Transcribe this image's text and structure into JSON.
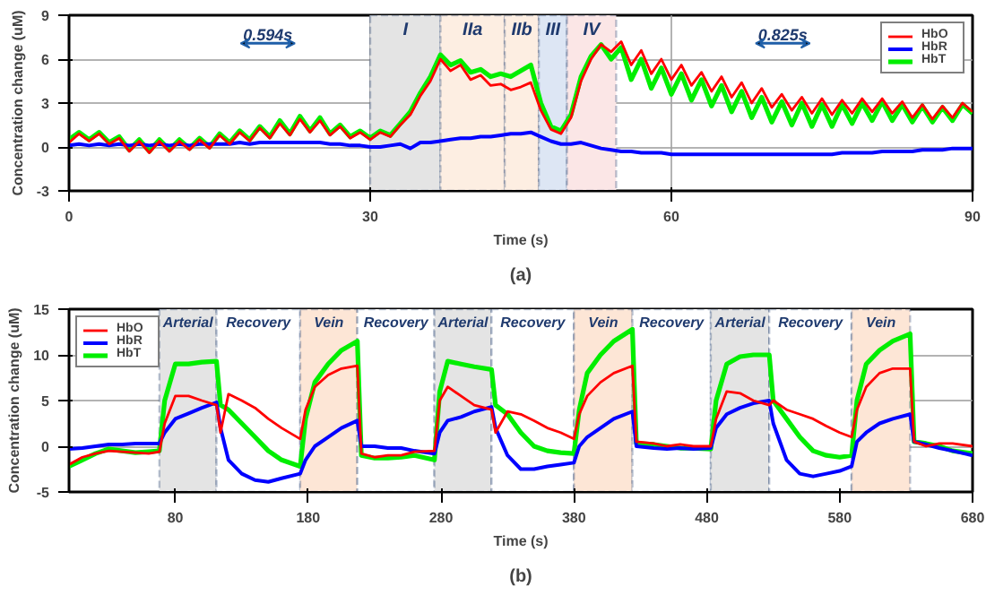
{
  "chart_data": [
    {
      "type": "line",
      "xlabel": "Time (s)",
      "ylabel": "Concentration change (uM)",
      "xlim": [
        0,
        90
      ],
      "ylim": [
        -3,
        9
      ],
      "xticks": [
        0,
        30,
        60,
        90
      ],
      "yticks": [
        -3,
        0,
        3,
        6,
        9
      ],
      "grid": true,
      "legend": "top right",
      "annotations": [
        "0.594s",
        "0.825s",
        "(a)"
      ],
      "bands": [
        {
          "axis": "x",
          "from": 30,
          "to": 37,
          "label": "I",
          "color": "#e4e4e4"
        },
        {
          "axis": "x",
          "from": 37,
          "to": 43.4,
          "label": "IIa",
          "color": "#fdeee2"
        },
        {
          "axis": "x",
          "from": 43.4,
          "to": 46.8,
          "label": "IIb",
          "color": "#fdeee2"
        },
        {
          "axis": "x",
          "from": 46.8,
          "to": 49.6,
          "label": "III",
          "color": "#dde6f4"
        },
        {
          "axis": "x",
          "from": 49.6,
          "to": 54.5,
          "label": "IV",
          "color": "#fbe6e6"
        }
      ],
      "x": [
        0,
        1,
        2,
        3,
        4,
        5,
        6,
        7,
        8,
        9,
        10,
        11,
        12,
        13,
        14,
        15,
        16,
        17,
        18,
        19,
        20,
        21,
        22,
        23,
        24,
        25,
        26,
        27,
        28,
        29,
        30,
        31,
        32,
        33,
        34,
        35,
        36,
        37,
        38,
        39,
        40,
        41,
        42,
        43,
        44,
        45,
        46,
        47,
        48,
        49,
        50,
        51,
        52,
        53,
        54,
        55,
        56,
        57,
        58,
        59,
        60,
        61,
        62,
        63,
        64,
        65,
        66,
        67,
        68,
        69,
        70,
        71,
        72,
        73,
        74,
        75,
        76,
        77,
        78,
        79,
        80,
        81,
        82,
        83,
        84,
        85,
        86,
        87,
        88,
        89,
        90
      ],
      "series": [
        {
          "name": "HbO",
          "color": "#ff0000",
          "values": [
            0.3,
            0.9,
            0.4,
            0.9,
            0.2,
            0.6,
            -0.3,
            0.4,
            -0.4,
            0.4,
            -0.3,
            0.4,
            -0.2,
            0.5,
            -0.1,
            0.8,
            0.2,
            1.0,
            0.4,
            1.3,
            0.6,
            1.6,
            0.8,
            1.9,
            1.0,
            1.8,
            0.8,
            1.4,
            0.6,
            1.0,
            0.5,
            1.0,
            0.7,
            1.5,
            2.2,
            3.5,
            4.5,
            6.0,
            5.2,
            5.6,
            4.6,
            4.9,
            4.2,
            4.3,
            3.9,
            4.1,
            4.4,
            2.5,
            1.2,
            0.9,
            2.0,
            4.5,
            6.0,
            7.0,
            6.5,
            7.2,
            5.6,
            6.6,
            5.0,
            6.0,
            4.6,
            5.6,
            4.2,
            5.1,
            3.8,
            4.8,
            3.4,
            4.4,
            3.0,
            4.0,
            2.7,
            3.6,
            2.5,
            3.4,
            2.3,
            3.3,
            2.2,
            3.2,
            2.3,
            3.3,
            2.4,
            3.3,
            2.3,
            3.1,
            2.0,
            2.9,
            1.9,
            2.8,
            2.0,
            3.0,
            2.4
          ]
        },
        {
          "name": "HbR",
          "color": "#0000ff",
          "values": [
            0.1,
            0.2,
            0.1,
            0.2,
            0.1,
            0.2,
            0.1,
            0.2,
            0.1,
            0.2,
            0.1,
            0.2,
            0.1,
            0.2,
            0.2,
            0.2,
            0.2,
            0.3,
            0.2,
            0.3,
            0.3,
            0.3,
            0.3,
            0.3,
            0.3,
            0.3,
            0.2,
            0.2,
            0.1,
            0.1,
            0.0,
            0.0,
            0.1,
            0.2,
            -0.1,
            0.3,
            0.3,
            0.4,
            0.5,
            0.6,
            0.6,
            0.7,
            0.7,
            0.8,
            0.9,
            0.9,
            1.0,
            0.7,
            0.4,
            0.2,
            0.2,
            0.3,
            0.1,
            -0.1,
            -0.2,
            -0.3,
            -0.3,
            -0.4,
            -0.4,
            -0.4,
            -0.5,
            -0.5,
            -0.5,
            -0.5,
            -0.5,
            -0.5,
            -0.5,
            -0.5,
            -0.5,
            -0.5,
            -0.5,
            -0.5,
            -0.5,
            -0.5,
            -0.5,
            -0.5,
            -0.5,
            -0.4,
            -0.4,
            -0.4,
            -0.4,
            -0.3,
            -0.3,
            -0.3,
            -0.3,
            -0.2,
            -0.2,
            -0.2,
            -0.1,
            -0.1,
            -0.1
          ]
        },
        {
          "name": "HbT",
          "color": "#00ee00",
          "values": [
            0.5,
            1.0,
            0.5,
            1.0,
            0.3,
            0.7,
            -0.2,
            0.5,
            -0.3,
            0.5,
            -0.2,
            0.5,
            -0.1,
            0.6,
            0.0,
            0.9,
            0.3,
            1.1,
            0.5,
            1.4,
            0.7,
            1.8,
            0.9,
            2.1,
            1.1,
            2.0,
            0.9,
            1.5,
            0.7,
            1.1,
            0.6,
            1.1,
            0.8,
            1.6,
            2.4,
            3.7,
            4.8,
            6.3,
            5.6,
            5.9,
            5.1,
            5.3,
            4.8,
            5.0,
            4.8,
            5.2,
            5.6,
            3.0,
            1.4,
            1.1,
            2.2,
            4.8,
            6.2,
            7.0,
            6.0,
            6.8,
            4.6,
            6.0,
            4.0,
            5.4,
            3.6,
            5.0,
            3.2,
            4.6,
            2.8,
            4.2,
            2.4,
            3.8,
            2.0,
            3.4,
            1.7,
            3.1,
            1.5,
            3.0,
            1.4,
            2.9,
            1.4,
            2.9,
            1.6,
            3.0,
            1.8,
            3.1,
            1.8,
            2.9,
            1.7,
            2.8,
            1.7,
            2.7,
            1.8,
            2.9,
            2.3
          ]
        }
      ]
    },
    {
      "type": "line",
      "xlabel": "Time (s)",
      "ylabel": "Concentration change (uM)",
      "xlim": [
        0,
        680
      ],
      "ylim": [
        -5,
        15
      ],
      "xticks": [
        80,
        180,
        280,
        380,
        480,
        580,
        680
      ],
      "yticks": [
        -5,
        0,
        5,
        10,
        15
      ],
      "grid": true,
      "legend": "top left",
      "annotations": [
        "(b)"
      ],
      "bands": [
        {
          "axis": "x",
          "from": 68,
          "to": 111,
          "label": "Arterial",
          "color": "#e4e4e4"
        },
        {
          "axis": "x",
          "from": 111,
          "to": 174,
          "label": "Recovery",
          "color": "#ffffff"
        },
        {
          "axis": "x",
          "from": 174,
          "to": 217,
          "label": "Vein",
          "color": "#fde6d6"
        },
        {
          "axis": "x",
          "from": 217,
          "to": 275,
          "label": "Recovery",
          "color": "#ffffff"
        },
        {
          "axis": "x",
          "from": 275,
          "to": 318,
          "label": "Arterial",
          "color": "#e4e4e4"
        },
        {
          "axis": "x",
          "from": 318,
          "to": 380,
          "label": "Recovery",
          "color": "#ffffff"
        },
        {
          "axis": "x",
          "from": 380,
          "to": 424,
          "label": "Vein",
          "color": "#fde6d6"
        },
        {
          "axis": "x",
          "from": 424,
          "to": 483,
          "label": "Recovery",
          "color": "#ffffff"
        },
        {
          "axis": "x",
          "from": 483,
          "to": 527,
          "label": "Arterial",
          "color": "#e4e4e4"
        },
        {
          "axis": "x",
          "from": 527,
          "to": 589,
          "label": "Recovery",
          "color": "#ffffff"
        },
        {
          "axis": "x",
          "from": 589,
          "to": 633,
          "label": "Vein",
          "color": "#fde6d6"
        }
      ],
      "x": [
        0,
        10,
        20,
        30,
        40,
        50,
        60,
        68,
        72,
        80,
        90,
        100,
        111,
        114,
        120,
        130,
        140,
        150,
        160,
        174,
        178,
        185,
        195,
        205,
        217,
        220,
        230,
        240,
        250,
        260,
        275,
        279,
        285,
        295,
        305,
        318,
        321,
        330,
        340,
        350,
        360,
        370,
        380,
        384,
        390,
        400,
        410,
        424,
        427,
        440,
        450,
        460,
        470,
        483,
        487,
        495,
        505,
        515,
        527,
        530,
        540,
        550,
        560,
        570,
        580,
        589,
        593,
        600,
        610,
        620,
        633,
        636,
        645,
        655,
        665,
        680
      ],
      "series": [
        {
          "name": "HbO",
          "color": "#ff0000",
          "values": [
            -2,
            -1.2,
            -0.8,
            -0.5,
            -0.6,
            -0.7,
            -0.8,
            -0.6,
            2.5,
            5.5,
            5.5,
            5.0,
            4.5,
            1.5,
            5.7,
            5.0,
            4.2,
            3.0,
            2.0,
            0.8,
            4.0,
            6.5,
            7.8,
            8.5,
            8.8,
            -0.8,
            -1.2,
            -1.0,
            -1.0,
            -0.6,
            -0.5,
            5.0,
            6.5,
            5.5,
            4.5,
            4.0,
            1.5,
            3.8,
            3.5,
            2.8,
            2.0,
            1.5,
            0.8,
            3.5,
            5.5,
            7.0,
            8.0,
            8.8,
            0.5,
            0.3,
            0.0,
            0.2,
            0.0,
            0.0,
            3.0,
            6.0,
            5.8,
            5.0,
            4.5,
            5.0,
            4.0,
            3.5,
            3.0,
            2.2,
            1.5,
            1.0,
            4.0,
            6.5,
            8.0,
            8.5,
            8.5,
            0.5,
            0.0,
            0.3,
            0.3,
            0.0
          ]
        },
        {
          "name": "HbR",
          "color": "#0000ff",
          "values": [
            -0.3,
            -0.2,
            0.0,
            0.2,
            0.2,
            0.3,
            0.3,
            0.3,
            1.5,
            3.0,
            3.6,
            4.2,
            4.8,
            2.0,
            -1.5,
            -3.0,
            -3.7,
            -3.9,
            -3.5,
            -3.0,
            -1.5,
            0.0,
            1.0,
            2.0,
            2.8,
            0.0,
            0.0,
            -0.2,
            -0.2,
            -0.5,
            -0.8,
            1.5,
            2.8,
            3.2,
            3.8,
            4.3,
            2.0,
            -1.0,
            -2.5,
            -2.5,
            -2.2,
            -2.0,
            -1.8,
            0.0,
            1.0,
            2.0,
            3.0,
            3.8,
            0.0,
            -0.2,
            -0.3,
            -0.2,
            -0.3,
            -0.2,
            2.0,
            3.5,
            4.2,
            4.7,
            5.0,
            2.5,
            -1.5,
            -3.0,
            -3.3,
            -3.0,
            -2.7,
            -2.2,
            0.5,
            1.5,
            2.5,
            3.0,
            3.5,
            0.5,
            0.2,
            -0.2,
            -0.5,
            -1.0
          ]
        },
        {
          "name": "HbT",
          "color": "#00ee00",
          "values": [
            -2.2,
            -1.5,
            -0.8,
            -0.3,
            -0.5,
            -0.7,
            -0.6,
            -0.5,
            5.0,
            9.0,
            9.0,
            9.2,
            9.3,
            4.5,
            4.0,
            2.5,
            1.0,
            -0.5,
            -1.5,
            -2.2,
            3.0,
            7.0,
            9.0,
            10.5,
            11.5,
            -1.0,
            -1.3,
            -1.3,
            -1.2,
            -1.0,
            -1.5,
            6.0,
            9.3,
            9.0,
            8.7,
            8.4,
            4.5,
            3.5,
            1.5,
            0.0,
            -0.5,
            -0.7,
            -0.8,
            4.0,
            8.0,
            10.0,
            11.5,
            12.8,
            0.3,
            0.2,
            0.0,
            -0.2,
            -0.2,
            -0.3,
            5.0,
            9.0,
            9.8,
            10.0,
            10.0,
            5.0,
            3.0,
            1.0,
            -0.5,
            -1.0,
            -1.2,
            -1.0,
            5.0,
            9.0,
            10.5,
            11.5,
            12.3,
            0.5,
            0.3,
            0.0,
            -0.5,
            -0.8
          ]
        }
      ]
    }
  ]
}
